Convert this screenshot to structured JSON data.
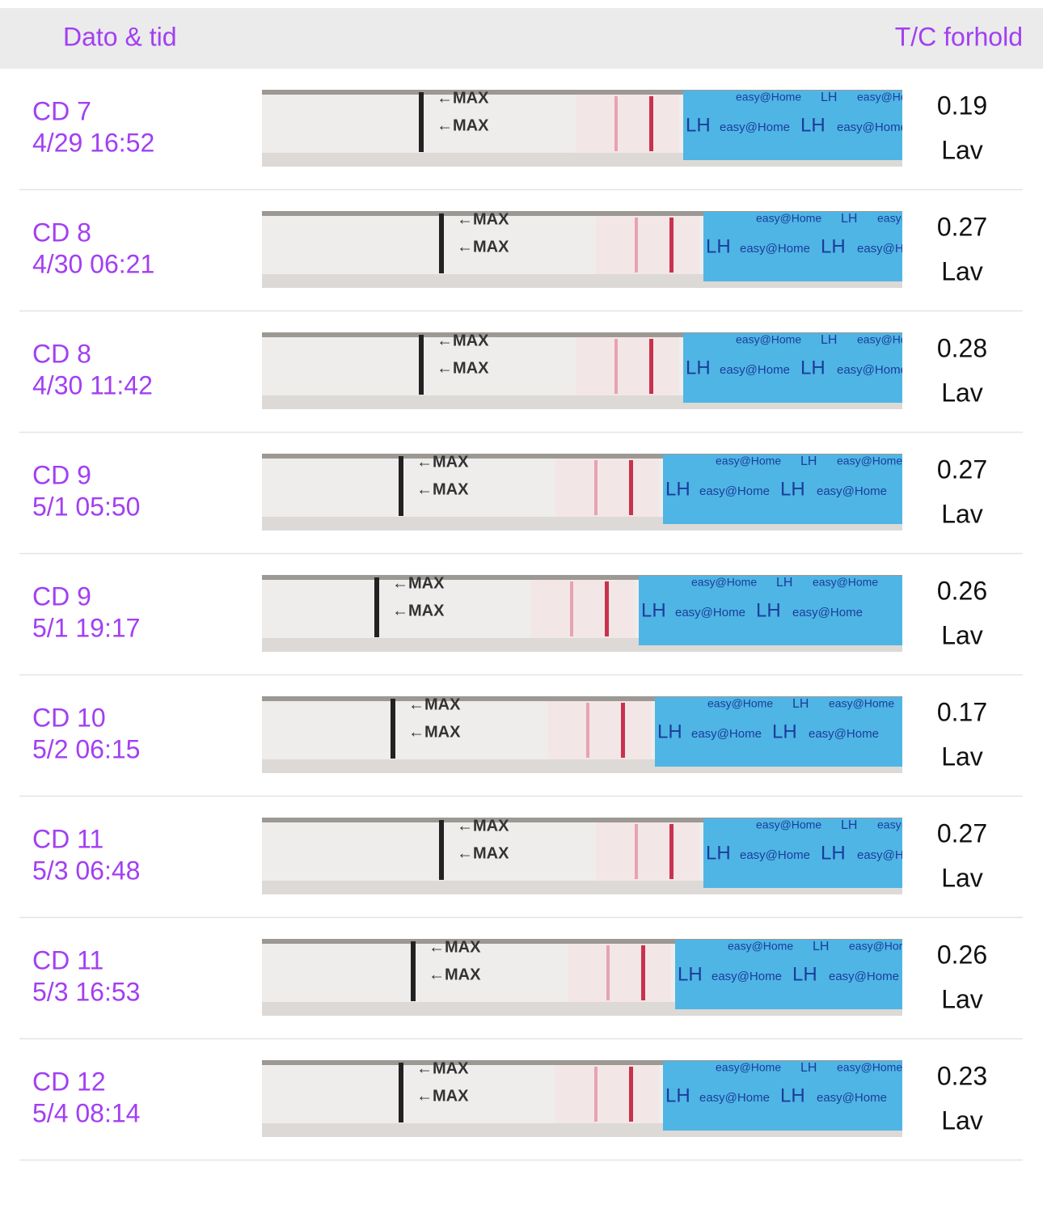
{
  "header": {
    "date_time": "Dato & tid",
    "ratio": "T/C forhold"
  },
  "strip_labels": {
    "max": "←MAX",
    "lh": "LH",
    "brand": "easy@Home"
  },
  "rows": [
    {
      "cycle_day": "CD 7",
      "date_time": "4/29 16:52",
      "ratio": "0.19",
      "level": "Lav"
    },
    {
      "cycle_day": "CD 8",
      "date_time": "4/30 06:21",
      "ratio": "0.27",
      "level": "Lav"
    },
    {
      "cycle_day": "CD 8",
      "date_time": "4/30 11:42",
      "ratio": "0.28",
      "level": "Lav"
    },
    {
      "cycle_day": "CD 9",
      "date_time": "5/1 05:50",
      "ratio": "0.27",
      "level": "Lav"
    },
    {
      "cycle_day": "CD 9",
      "date_time": "5/1 19:17",
      "ratio": "0.26",
      "level": "Lav"
    },
    {
      "cycle_day": "CD 10",
      "date_time": "5/2 06:15",
      "ratio": "0.17",
      "level": "Lav"
    },
    {
      "cycle_day": "CD 11",
      "date_time": "5/3 06:48",
      "ratio": "0.27",
      "level": "Lav"
    },
    {
      "cycle_day": "CD 11",
      "date_time": "5/3 16:53",
      "ratio": "0.26",
      "level": "Lav"
    },
    {
      "cycle_day": "CD 12",
      "date_time": "5/4 08:14",
      "ratio": "0.23",
      "level": "Lav"
    }
  ]
}
